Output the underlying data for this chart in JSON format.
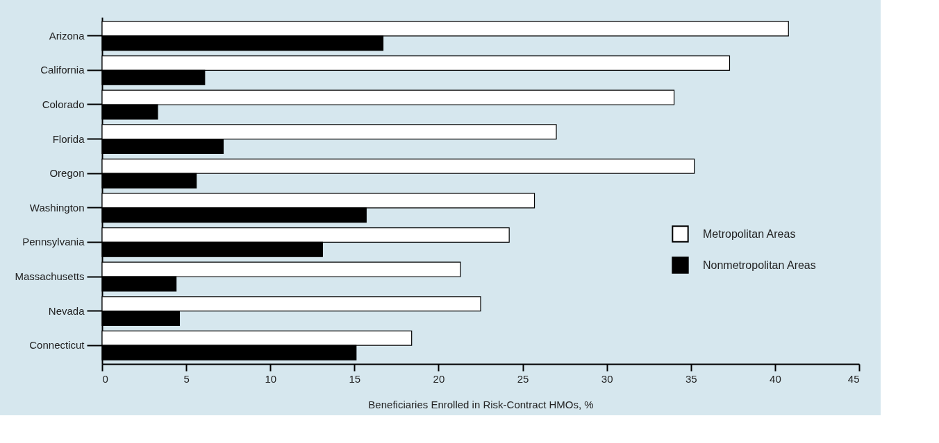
{
  "chart_data": {
    "type": "bar",
    "orientation": "horizontal",
    "xlabel": "Beneficiaries Enrolled in Risk-Contract HMOs, %",
    "categories": [
      "Arizona",
      "California",
      "Colorado",
      "Florida",
      "Oregon",
      "Washington",
      "Pennsylvania",
      "Massachusetts",
      "Nevada",
      "Connecticut"
    ],
    "series": [
      {
        "name": "Metropolitan Areas",
        "color": "#ffffff",
        "values": [
          40.8,
          37.3,
          34.0,
          27.0,
          35.2,
          25.7,
          24.2,
          21.3,
          22.5,
          18.4
        ]
      },
      {
        "name": "Nonmetropolitan Areas",
        "color": "#000000",
        "values": [
          16.7,
          6.1,
          3.3,
          7.2,
          5.6,
          15.7,
          13.1,
          4.4,
          4.6,
          15.1
        ]
      }
    ],
    "xlim": [
      0,
      45
    ],
    "xticks": [
      0,
      5,
      10,
      15,
      20,
      25,
      30,
      35,
      40,
      45
    ],
    "grid": false,
    "legend": "bottom right"
  }
}
